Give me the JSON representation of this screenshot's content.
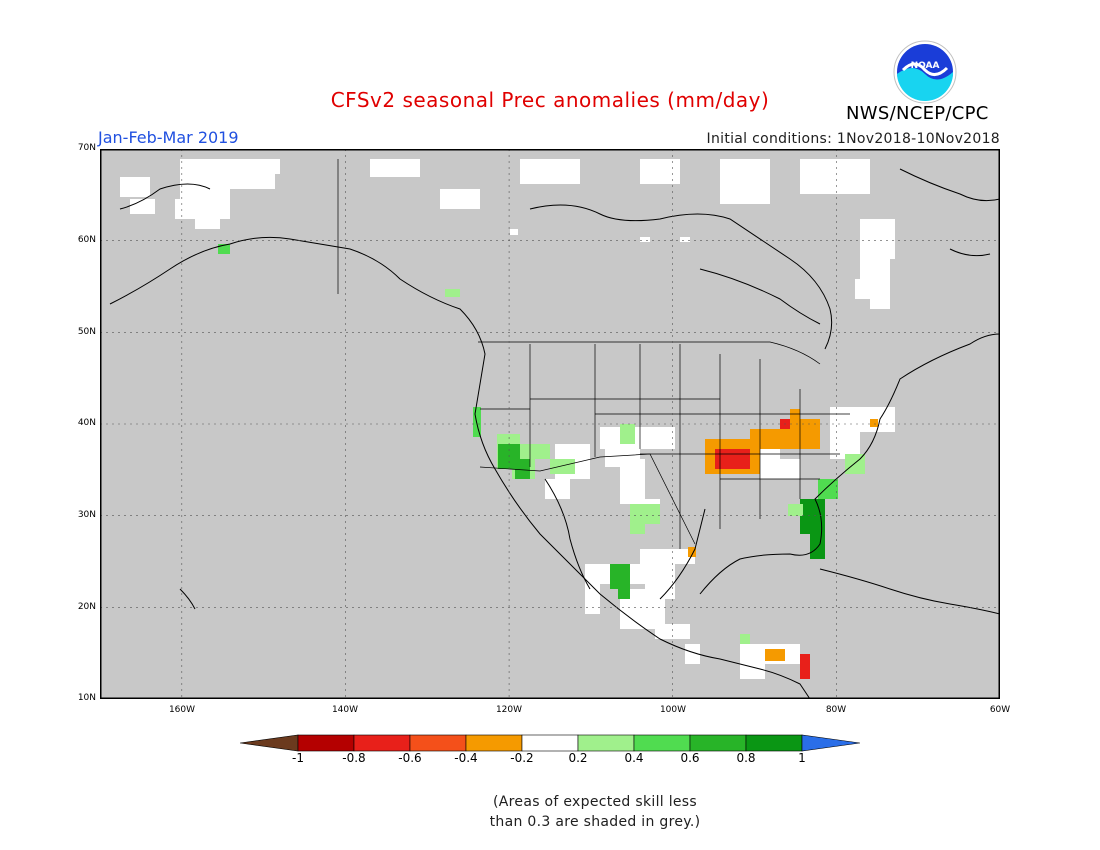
{
  "header": {
    "title": "CFSv2 seasonal Prec anomalies (mm/day)",
    "period": "Jan-Feb-Mar 2019",
    "initial_conditions": "Initial conditions: 1Nov2018-10Nov2018",
    "agency": "NWS/NCEP/CPC",
    "logo_text": "NOAA"
  },
  "axes": {
    "lat_labels": [
      "70N",
      "60N",
      "50N",
      "40N",
      "30N",
      "20N",
      "10N"
    ],
    "lon_labels": [
      "160W",
      "140W",
      "120W",
      "100W",
      "80W",
      "60W"
    ],
    "lon_range": [
      -170,
      -60
    ],
    "lat_range": [
      10,
      70
    ]
  },
  "legend": {
    "ticks": [
      "-1",
      "-0.8",
      "-0.6",
      "-0.4",
      "-0.2",
      "0.2",
      "0.4",
      "0.6",
      "0.8",
      "1"
    ],
    "colors": [
      "#6b3a1e",
      "#b40000",
      "#e8201a",
      "#f4501a",
      "#f59a00",
      "#ffffff",
      "#a0f08c",
      "#50dc50",
      "#28b428",
      "#0a9614",
      "#2a6ee8"
    ]
  },
  "colors": {
    "grey_mask": "#c8c8c8",
    "coast": "#000000",
    "title_red": "#e00000",
    "period_blue": "#2050e0"
  },
  "note": {
    "line1": "(Areas of expected skill less",
    "line2": "than 0.3 are shaded in grey.)"
  }
}
